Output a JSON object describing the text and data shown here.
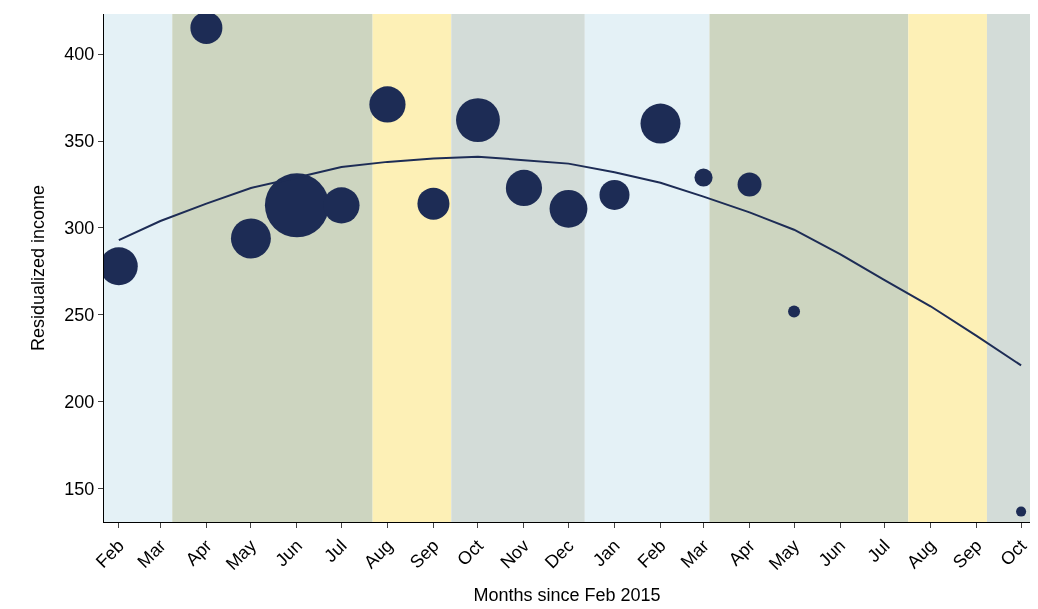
{
  "chart_data": {
    "type": "bubble",
    "xlabel": "Months since Feb 2015",
    "ylabel": "Residualized income",
    "xlim": [
      "2015-01-22",
      "2016-10-07"
    ],
    "ylim": [
      131,
      423
    ],
    "yticks": [
      150,
      200,
      250,
      300,
      350,
      400
    ],
    "xticks": [
      {
        "value": "2015-02",
        "label": "Feb"
      },
      {
        "value": "2015-03",
        "label": "Mar"
      },
      {
        "value": "2015-04",
        "label": "Apr"
      },
      {
        "value": "2015-05",
        "label": "May"
      },
      {
        "value": "2015-06",
        "label": "Jun"
      },
      {
        "value": "2015-07",
        "label": "Jul"
      },
      {
        "value": "2015-08",
        "label": "Aug"
      },
      {
        "value": "2015-09",
        "label": "Sep"
      },
      {
        "value": "2015-10",
        "label": "Oct"
      },
      {
        "value": "2015-11",
        "label": "Nov"
      },
      {
        "value": "2015-12",
        "label": "Dec"
      },
      {
        "value": "2016-01",
        "label": "Jan"
      },
      {
        "value": "2016-02",
        "label": "Feb"
      },
      {
        "value": "2016-03",
        "label": "Mar"
      },
      {
        "value": "2016-04",
        "label": "Apr"
      },
      {
        "value": "2016-05",
        "label": "May"
      },
      {
        "value": "2016-06",
        "label": "Jun"
      },
      {
        "value": "2016-07",
        "label": "Jul"
      },
      {
        "value": "2016-08",
        "label": "Aug"
      },
      {
        "value": "2016-09",
        "label": "Sep"
      },
      {
        "value": "2016-10",
        "label": "Oct"
      }
    ],
    "grid": false,
    "legend": false,
    "bands": [
      {
        "axis": "x",
        "from": "2015-01-22",
        "to": "2015-03-09",
        "color": "#e4f1f6"
      },
      {
        "axis": "x",
        "from": "2015-03-09",
        "to": "2015-07-22",
        "color": "#cdd5c0"
      },
      {
        "axis": "x",
        "from": "2015-07-22",
        "to": "2015-09-13",
        "color": "#fdf0b6"
      },
      {
        "axis": "x",
        "from": "2015-09-13",
        "to": "2015-12-12",
        "color": "#d3dcd8"
      },
      {
        "axis": "x",
        "from": "2015-12-12",
        "to": "2016-03-05",
        "color": "#e4f1f6"
      },
      {
        "axis": "x",
        "from": "2016-03-05",
        "to": "2016-07-17",
        "color": "#cdd5c0"
      },
      {
        "axis": "x",
        "from": "2016-07-17",
        "to": "2016-09-08",
        "color": "#fdf0b6"
      },
      {
        "axis": "x",
        "from": "2016-09-08",
        "to": "2016-10-07",
        "color": "#d3dcd8"
      }
    ],
    "series": [
      {
        "color": "#1d2c55",
        "x": [
          "2015-02",
          "2015-04",
          "2015-05",
          "2015-06",
          "2015-07",
          "2015-08",
          "2015-09",
          "2015-10",
          "2015-11",
          "2015-12",
          "2016-01",
          "2016-02",
          "2016-03",
          "2016-04",
          "2016-05",
          "2016-10"
        ],
        "values": [
          278,
          415,
          294,
          313,
          313,
          371,
          314,
          362,
          323,
          311,
          319,
          360,
          329,
          325,
          252,
          137
        ],
        "sizes": [
          0.35,
          0.25,
          0.39,
          1,
          0.32,
          0.32,
          0.25,
          0.47,
          0.32,
          0.35,
          0.22,
          0.39,
          0.08,
          0.14,
          0.035,
          0.025
        ]
      },
      {
        "type": "line",
        "color": "#1d2c55",
        "x": [
          "2015-02",
          "2015-03",
          "2015-04",
          "2015-05",
          "2015-06",
          "2015-07",
          "2015-08",
          "2015-09",
          "2015-10",
          "2015-11",
          "2015-12",
          "2016-01",
          "2016-02",
          "2016-03",
          "2016-04",
          "2016-05",
          "2016-06",
          "2016-07",
          "2016-08",
          "2016-09",
          "2016-10"
        ],
        "values": [
          293,
          304,
          314,
          323,
          329,
          335,
          338,
          340,
          341,
          339,
          337,
          332,
          326,
          318,
          309,
          299,
          285,
          270,
          255,
          238,
          221
        ]
      }
    ]
  }
}
